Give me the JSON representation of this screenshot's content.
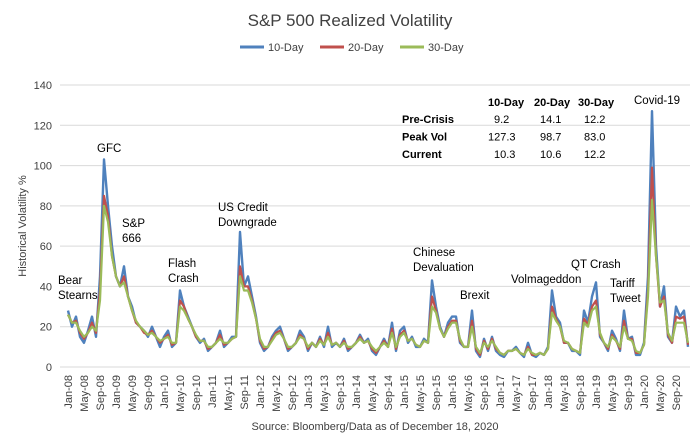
{
  "chart_data": {
    "type": "line",
    "title": "S&P 500 Realized Volatility",
    "xlabel": "",
    "ylabel": "Historical Volatility %",
    "ylim": [
      0,
      140
    ],
    "yticks": [
      0,
      20,
      40,
      60,
      80,
      100,
      120,
      140
    ],
    "grid": true,
    "legend_position": "top-center",
    "x_start": "Jan-08",
    "x_frequency": "monthly",
    "xtick_labels": [
      "Jan-08",
      "May-08",
      "Sep-08",
      "Jan-09",
      "May-09",
      "Sep-09",
      "Jan-10",
      "May-10",
      "Sep-10",
      "Jan-11",
      "May-11",
      "Sep-11",
      "Jan-12",
      "May-12",
      "Sep-12",
      "Jan-13",
      "May-13",
      "Sep-13",
      "Jan-14",
      "May-14",
      "Sep-14",
      "Jan-15",
      "May-15",
      "Sep-15",
      "Jan-16",
      "May-16",
      "Sep-16",
      "Jan-17",
      "May-17",
      "Sep-17",
      "Jan-18",
      "May-18",
      "Sep-18",
      "Jan-19",
      "May-19",
      "Sep-19",
      "Jan-20",
      "May-20",
      "Sep-20"
    ],
    "series": [
      {
        "name": "10-Day",
        "color": "#4f81bd",
        "values": [
          28,
          20,
          25,
          15,
          12,
          18,
          25,
          15,
          45,
          103,
          80,
          60,
          45,
          40,
          50,
          35,
          30,
          22,
          20,
          18,
          15,
          20,
          15,
          10,
          15,
          18,
          10,
          12,
          38,
          30,
          25,
          20,
          15,
          12,
          14,
          8,
          10,
          12,
          18,
          10,
          12,
          15,
          15,
          67,
          40,
          45,
          35,
          25,
          12,
          8,
          10,
          15,
          18,
          20,
          14,
          8,
          10,
          12,
          18,
          15,
          8,
          12,
          10,
          15,
          10,
          20,
          10,
          12,
          10,
          14,
          8,
          10,
          12,
          16,
          12,
          14,
          8,
          6,
          10,
          14,
          10,
          22,
          8,
          18,
          20,
          12,
          15,
          10,
          10,
          14,
          12,
          43,
          30,
          20,
          15,
          22,
          25,
          25,
          12,
          10,
          10,
          28,
          8,
          5,
          14,
          8,
          15,
          8,
          6,
          5,
          8,
          8,
          10,
          7,
          5,
          12,
          6,
          5,
          7,
          6,
          10,
          38,
          25,
          22,
          12,
          12,
          8,
          8,
          6,
          28,
          22,
          35,
          42,
          15,
          12,
          8,
          18,
          14,
          8,
          28,
          14,
          15,
          6,
          6,
          12,
          45,
          127,
          60,
          30,
          40,
          15,
          12,
          30,
          25,
          28,
          10
        ]
      },
      {
        "name": "20-Day",
        "color": "#c0504d",
        "values": [
          26,
          22,
          23,
          17,
          14,
          17,
          22,
          17,
          38,
          85,
          75,
          55,
          45,
          40,
          45,
          35,
          28,
          22,
          20,
          17,
          16,
          18,
          15,
          12,
          14,
          16,
          11,
          12,
          33,
          30,
          24,
          20,
          15,
          13,
          13,
          9,
          10,
          12,
          16,
          11,
          12,
          14,
          15,
          50,
          40,
          40,
          33,
          24,
          13,
          9,
          10,
          14,
          17,
          18,
          14,
          9,
          10,
          12,
          16,
          14,
          9,
          12,
          10,
          14,
          11,
          17,
          11,
          12,
          10,
          13,
          9,
          10,
          12,
          15,
          12,
          13,
          9,
          7,
          10,
          13,
          10,
          19,
          9,
          16,
          18,
          13,
          14,
          11,
          10,
          13,
          12,
          35,
          28,
          19,
          15,
          20,
          23,
          23,
          13,
          10,
          10,
          23,
          9,
          6,
          13,
          9,
          14,
          9,
          7,
          6,
          8,
          8,
          9,
          7,
          6,
          10,
          6,
          6,
          7,
          6,
          9,
          30,
          24,
          20,
          12,
          12,
          9,
          8,
          7,
          24,
          21,
          30,
          33,
          16,
          12,
          9,
          16,
          13,
          9,
          23,
          14,
          14,
          7,
          7,
          11,
          38,
          99,
          55,
          30,
          35,
          16,
          12,
          25,
          24,
          25,
          11
        ]
      },
      {
        "name": "30-Day",
        "color": "#9bbb59",
        "values": [
          26,
          22,
          22,
          18,
          15,
          17,
          20,
          18,
          33,
          80,
          72,
          55,
          45,
          40,
          42,
          35,
          28,
          23,
          20,
          18,
          16,
          17,
          15,
          13,
          14,
          15,
          12,
          12,
          30,
          28,
          24,
          20,
          16,
          13,
          13,
          10,
          10,
          12,
          14,
          12,
          12,
          14,
          15,
          45,
          38,
          38,
          32,
          24,
          14,
          10,
          10,
          13,
          16,
          17,
          14,
          10,
          10,
          12,
          15,
          14,
          10,
          12,
          10,
          13,
          11,
          15,
          11,
          12,
          10,
          12,
          10,
          10,
          12,
          14,
          12,
          13,
          10,
          8,
          10,
          12,
          10,
          17,
          10,
          15,
          17,
          13,
          14,
          11,
          10,
          13,
          12,
          30,
          27,
          19,
          15,
          19,
          22,
          22,
          14,
          10,
          10,
          20,
          10,
          7,
          12,
          10,
          13,
          10,
          7,
          6,
          8,
          8,
          9,
          7,
          6,
          9,
          7,
          6,
          7,
          6,
          9,
          27,
          23,
          20,
          13,
          12,
          9,
          8,
          7,
          22,
          20,
          28,
          30,
          17,
          12,
          10,
          15,
          13,
          10,
          20,
          14,
          13,
          8,
          7,
          11,
          35,
          83,
          55,
          32,
          33,
          17,
          13,
          22,
          22,
          22,
          12
        ]
      }
    ],
    "annotations": [
      {
        "id": "bear",
        "lines": [
          "Bear",
          "Stearns"
        ]
      },
      {
        "id": "gfc",
        "lines": [
          "GFC"
        ]
      },
      {
        "id": "sp666",
        "lines": [
          "S&P",
          "666"
        ]
      },
      {
        "id": "flash",
        "lines": [
          "Flash",
          "Crash"
        ]
      },
      {
        "id": "uscredit",
        "lines": [
          "US Credit",
          "Downgrade"
        ]
      },
      {
        "id": "chinese",
        "lines": [
          "Chinese",
          "Devaluation"
        ]
      },
      {
        "id": "brexit",
        "lines": [
          "Brexit"
        ]
      },
      {
        "id": "volm",
        "lines": [
          "Volmageddon"
        ]
      },
      {
        "id": "qt",
        "lines": [
          "QT Crash"
        ]
      },
      {
        "id": "tariff",
        "lines": [
          "Tariff",
          "Tweet"
        ]
      },
      {
        "id": "covid",
        "lines": [
          "Covid-19"
        ]
      }
    ],
    "table": {
      "columns": [
        "",
        "10-Day",
        "20-Day",
        "30-Day"
      ],
      "rows": [
        [
          "Pre-Crisis",
          "9.2",
          "14.1",
          "12.2"
        ],
        [
          "Peak Vol",
          "127.3",
          "98.7",
          "83.0"
        ],
        [
          "Current",
          "10.3",
          "10.6",
          "12.2"
        ]
      ]
    },
    "source": "Source: Bloomberg/Data as of December 18, 2020"
  }
}
